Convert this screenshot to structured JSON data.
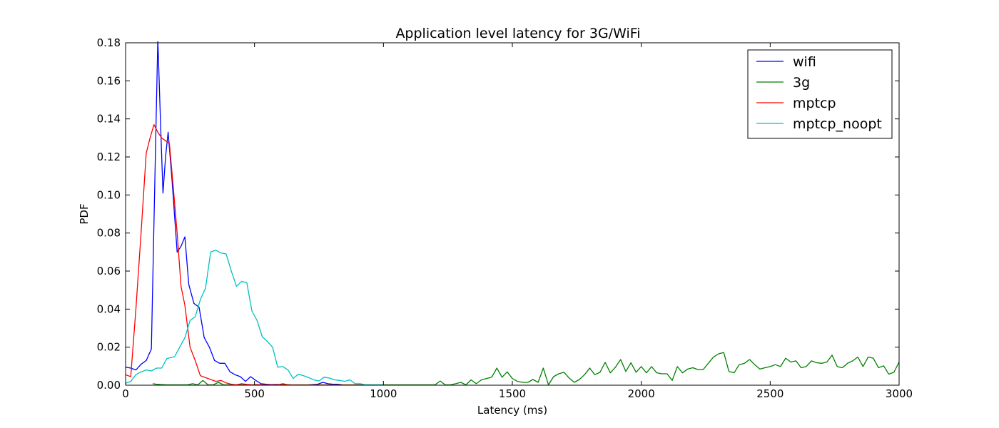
{
  "chart_data": {
    "type": "line",
    "title": "Application level latency for 3G/WiFi",
    "xlabel": "Latency (ms)",
    "ylabel": "PDF",
    "xlim": [
      0,
      3000
    ],
    "ylim": [
      0,
      0.18
    ],
    "xticks": [
      0,
      500,
      1000,
      1500,
      2000,
      2500,
      3000
    ],
    "yticks": [
      0.0,
      0.02,
      0.04,
      0.06,
      0.08,
      0.1,
      0.12,
      0.14,
      0.16,
      0.18
    ],
    "xtick_labels": [
      "0",
      "500",
      "1000",
      "1500",
      "2000",
      "2500",
      "3000"
    ],
    "ytick_labels": [
      "0.00",
      "0.02",
      "0.04",
      "0.06",
      "0.08",
      "0.10",
      "0.12",
      "0.14",
      "0.16",
      "0.18"
    ],
    "grid": false,
    "legend_position": "top-right",
    "series": [
      {
        "name": "wifi",
        "color": "#0000ff",
        "x": [
          0,
          20,
          40,
          60,
          80,
          100,
          110,
          125,
          135,
          145,
          155,
          165,
          180,
          200,
          215,
          230,
          245,
          265,
          285,
          305,
          325,
          345,
          365,
          385,
          405,
          425,
          445,
          465,
          485,
          505,
          525,
          545,
          565,
          585,
          605,
          625,
          645,
          665,
          685,
          705,
          725,
          745,
          765,
          785,
          805,
          825,
          845,
          865,
          885,
          905,
          925,
          945,
          965,
          985,
          1000
        ],
        "y": [
          0.0095,
          0.009,
          0.008,
          0.011,
          0.013,
          0.019,
          0.085,
          0.182,
          0.14,
          0.101,
          0.12,
          0.133,
          0.108,
          0.07,
          0.073,
          0.078,
          0.053,
          0.043,
          0.041,
          0.025,
          0.02,
          0.013,
          0.0115,
          0.0115,
          0.007,
          0.0055,
          0.0045,
          0.002,
          0.0045,
          0.0025,
          0.0008,
          0.0005,
          0.0003,
          0.0004,
          0.0002,
          0.0003,
          0.0001,
          0.0001,
          0.0001,
          0.0001,
          0.0003,
          0.0005,
          0.0015,
          0.0008,
          0.0005,
          0.0005,
          0.0001,
          0.0001,
          0.0001,
          0.0001,
          0.0001,
          0.0001,
          0.0001,
          0.0001,
          0.0001
        ]
      },
      {
        "name": "3g",
        "color": "#008000",
        "x": [
          105,
          120,
          140,
          160,
          180,
          200,
          220,
          240,
          260,
          280,
          300,
          320,
          340,
          360,
          380,
          400,
          420,
          440,
          460,
          480,
          500,
          520,
          540,
          560,
          580,
          600,
          620,
          640,
          660,
          680,
          700,
          720,
          740,
          760,
          780,
          800,
          820,
          840,
          860,
          880,
          900,
          920,
          940,
          960,
          980,
          1000,
          1020,
          1040,
          1060,
          1080,
          1100,
          1120,
          1140,
          1160,
          1180,
          1200,
          1220,
          1240,
          1260,
          1280,
          1300,
          1320,
          1340,
          1360,
          1380,
          1400,
          1420,
          1440,
          1460,
          1480,
          1500,
          1520,
          1540,
          1560,
          1580,
          1600,
          1620,
          1640,
          1660,
          1680,
          1700,
          1720,
          1740,
          1760,
          1780,
          1800,
          1820,
          1840,
          1860,
          1880,
          1900,
          1920,
          1940,
          1960,
          1980,
          2000,
          2020,
          2040,
          2060,
          2080,
          2100,
          2120,
          2140,
          2160,
          2180,
          2200,
          2220,
          2240,
          2260,
          2280,
          2300,
          2320,
          2340,
          2360,
          2380,
          2400,
          2420,
          2440,
          2460,
          2480,
          2500,
          2520,
          2540,
          2560,
          2580,
          2600,
          2620,
          2640,
          2660,
          2680,
          2700,
          2720,
          2740,
          2760,
          2780,
          2800,
          2820,
          2840,
          2860,
          2880,
          2900,
          2920,
          2940,
          2960,
          2980,
          3000
        ],
        "y": [
          0.0008,
          0.0005,
          0.0003,
          0.0002,
          0.0002,
          0.0002,
          0.0002,
          0.0002,
          0.0008,
          0.0002,
          0.0025,
          0.0002,
          0.0002,
          0.0015,
          0.0002,
          0.0002,
          0.0002,
          0.0002,
          0.0002,
          0.0002,
          0.0002,
          0.0002,
          0.0002,
          0.0002,
          0.0002,
          0.0002,
          0.0002,
          0.0002,
          0.0002,
          0.0002,
          0.0002,
          0.0002,
          0.0002,
          0.0002,
          0.0002,
          0.0002,
          0.0002,
          0.0002,
          0.0002,
          0.0002,
          0.0002,
          0.0002,
          0.0002,
          0.0002,
          0.0002,
          0.0002,
          0.0002,
          0.0002,
          0.0002,
          0.0002,
          0.0002,
          0.0002,
          0.0002,
          0.0002,
          0.0002,
          0.0002,
          0.0022,
          0.0002,
          0.0002,
          0.0008,
          0.0015,
          0.0002,
          0.0028,
          0.0008,
          0.0028,
          0.0035,
          0.0042,
          0.009,
          0.0042,
          0.007,
          0.0035,
          0.002,
          0.0015,
          0.0015,
          0.003,
          0.0015,
          0.009,
          0.0002,
          0.0045,
          0.006,
          0.0068,
          0.0038,
          0.0015,
          0.003,
          0.0055,
          0.009,
          0.0055,
          0.0068,
          0.012,
          0.0065,
          0.0095,
          0.0135,
          0.0072,
          0.0118,
          0.0068,
          0.0098,
          0.0065,
          0.0098,
          0.0065,
          0.006,
          0.006,
          0.0025,
          0.0098,
          0.0065,
          0.0085,
          0.0092,
          0.0082,
          0.0082,
          0.0115,
          0.0148,
          0.0165,
          0.0172,
          0.0072,
          0.0065,
          0.0108,
          0.0115,
          0.0135,
          0.0108,
          0.0085,
          0.0092,
          0.0098,
          0.0108,
          0.0098,
          0.0142,
          0.0122,
          0.0128,
          0.0092,
          0.0098,
          0.0128,
          0.0118,
          0.0115,
          0.0122,
          0.0158,
          0.0098,
          0.0092,
          0.0115,
          0.0128,
          0.0148,
          0.0098,
          0.0148,
          0.0142,
          0.0092,
          0.0102,
          0.0058,
          0.0068,
          0.0122
        ]
      },
      {
        "name": "mptcp",
        "color": "#ff0000",
        "x": [
          0,
          20,
          40,
          60,
          80,
          95,
          110,
          125,
          140,
          160,
          170,
          185,
          200,
          215,
          230,
          250,
          270,
          290,
          310,
          330,
          350,
          370,
          390,
          410,
          430,
          450,
          470,
          490,
          510,
          530,
          550,
          570,
          590,
          610,
          630,
          650,
          700,
          750,
          800,
          850,
          900,
          950,
          1000
        ],
        "y": [
          0.0055,
          0.0045,
          0.04,
          0.08,
          0.122,
          0.13,
          0.137,
          0.133,
          0.13,
          0.128,
          0.127,
          0.104,
          0.08,
          0.052,
          0.042,
          0.02,
          0.013,
          0.005,
          0.004,
          0.003,
          0.002,
          0.0025,
          0.0012,
          0.0005,
          0.0002,
          0.0008,
          0.0004,
          0.0002,
          0.0003,
          0.0002,
          0.0002,
          0.0002,
          0.0002,
          0.0008,
          0.0002,
          0.0001,
          0.0001,
          0.0001,
          0.0001,
          0.0001,
          0.0001,
          0.0001,
          0.0001
        ]
      },
      {
        "name": "mptcp_noopt",
        "color": "#00bfbf",
        "x": [
          0,
          20,
          40,
          60,
          80,
          100,
          120,
          140,
          160,
          175,
          190,
          210,
          230,
          250,
          270,
          290,
          310,
          330,
          350,
          370,
          390,
          410,
          430,
          450,
          470,
          490,
          510,
          530,
          550,
          570,
          590,
          610,
          630,
          650,
          670,
          690,
          710,
          730,
          750,
          770,
          790,
          810,
          830,
          850,
          870,
          890,
          910,
          930,
          950,
          970,
          1000
        ],
        "y": [
          0.001,
          0.002,
          0.0055,
          0.007,
          0.008,
          0.0075,
          0.009,
          0.009,
          0.014,
          0.0145,
          0.015,
          0.02,
          0.025,
          0.034,
          0.036,
          0.045,
          0.051,
          0.07,
          0.071,
          0.0695,
          0.069,
          0.06,
          0.052,
          0.0545,
          0.054,
          0.039,
          0.034,
          0.0255,
          0.023,
          0.02,
          0.0095,
          0.0098,
          0.008,
          0.0035,
          0.0058,
          0.005,
          0.004,
          0.0028,
          0.0022,
          0.0042,
          0.0038,
          0.0028,
          0.0025,
          0.002,
          0.0028,
          0.0008,
          0.0008,
          0.0002,
          0.0002,
          0.0002,
          0.0002
        ]
      }
    ]
  }
}
